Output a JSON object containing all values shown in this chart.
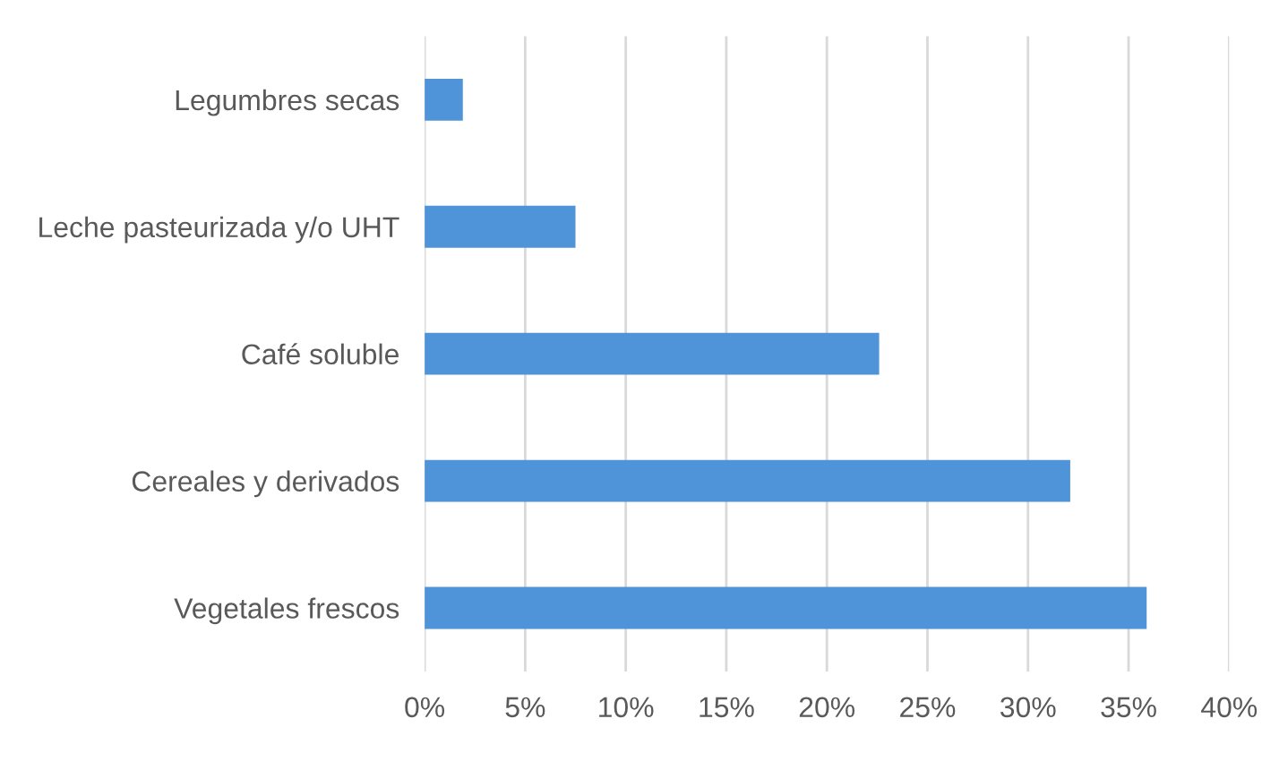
{
  "chart_data": {
    "type": "bar",
    "orientation": "horizontal",
    "categories": [
      "Legumbres secas",
      "Leche pasteurizada y/o UHT",
      "Café soluble",
      "Cereales y derivados",
      "Vegetales frescos"
    ],
    "values": [
      0.019,
      0.075,
      0.226,
      0.321,
      0.359
    ],
    "color": "#4f94d8",
    "xlim": [
      0,
      0.4
    ],
    "xticks": [
      {
        "value": 0,
        "label": "0%"
      },
      {
        "value": 0.05,
        "label": "5%"
      },
      {
        "value": 0.1,
        "label": "10%"
      },
      {
        "value": 0.15,
        "label": "15%"
      },
      {
        "value": 0.2,
        "label": "20%"
      },
      {
        "value": 0.25,
        "label": "25%"
      },
      {
        "value": 0.3,
        "label": "30%"
      },
      {
        "value": 0.35,
        "label": "35%"
      },
      {
        "value": 0.4,
        "label": "40%"
      }
    ],
    "grid": "x"
  }
}
